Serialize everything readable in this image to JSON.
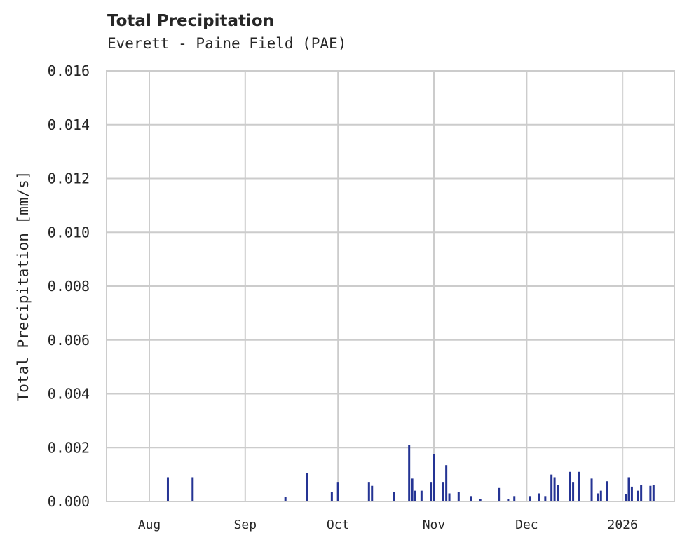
{
  "chart_data": {
    "type": "bar",
    "title": "Total Precipitation",
    "subtitle": "Everett - Paine Field (PAE)",
    "xlabel": "",
    "ylabel": "Total Precipitation [mm/s]",
    "ylim": [
      0,
      0.016
    ],
    "yticks": [
      "0.000",
      "0.002",
      "0.004",
      "0.006",
      "0.008",
      "0.010",
      "0.012",
      "0.014",
      "0.016"
    ],
    "xticks": [
      "Aug",
      "Sep",
      "Oct",
      "Nov",
      "Dec",
      "2026"
    ],
    "grid": true,
    "color": "#253494",
    "x_dates": [
      "2025-08-07",
      "2025-08-15",
      "2025-09-14",
      "2025-09-21",
      "2025-09-29",
      "2025-10-01",
      "2025-10-11",
      "2025-10-12",
      "2025-10-19",
      "2025-10-24",
      "2025-10-25",
      "2025-10-26",
      "2025-10-28",
      "2025-10-31",
      "2025-11-01",
      "2025-11-04",
      "2025-11-05",
      "2025-11-06",
      "2025-11-09",
      "2025-11-13",
      "2025-11-16",
      "2025-11-22",
      "2025-11-25",
      "2025-11-27",
      "2025-12-02",
      "2025-12-05",
      "2025-12-07",
      "2025-12-09",
      "2025-12-10",
      "2025-12-11",
      "2025-12-15",
      "2025-12-16",
      "2025-12-18",
      "2025-12-22",
      "2025-12-24",
      "2025-12-25",
      "2025-12-27",
      "2026-01-02",
      "2026-01-03",
      "2026-01-04",
      "2026-01-06",
      "2026-01-07",
      "2026-01-10",
      "2026-01-11"
    ],
    "values": [
      0.0009,
      0.0009,
      0.00018,
      0.00105,
      0.00035,
      0.0007,
      0.0007,
      0.00058,
      0.00035,
      0.0021,
      0.00085,
      0.0004,
      0.0004,
      0.0007,
      0.00175,
      0.0007,
      0.00135,
      0.0003,
      0.00035,
      0.0002,
      0.0001,
      0.0005,
      0.0001,
      0.0002,
      0.0002,
      0.0003,
      0.0002,
      0.001,
      0.0009,
      0.0006,
      0.0011,
      0.0007,
      0.0011,
      0.00085,
      0.0003,
      0.0004,
      0.00075,
      0.00028,
      0.0009,
      0.00055,
      0.0004,
      0.0006,
      0.00058,
      0.00062
    ]
  }
}
